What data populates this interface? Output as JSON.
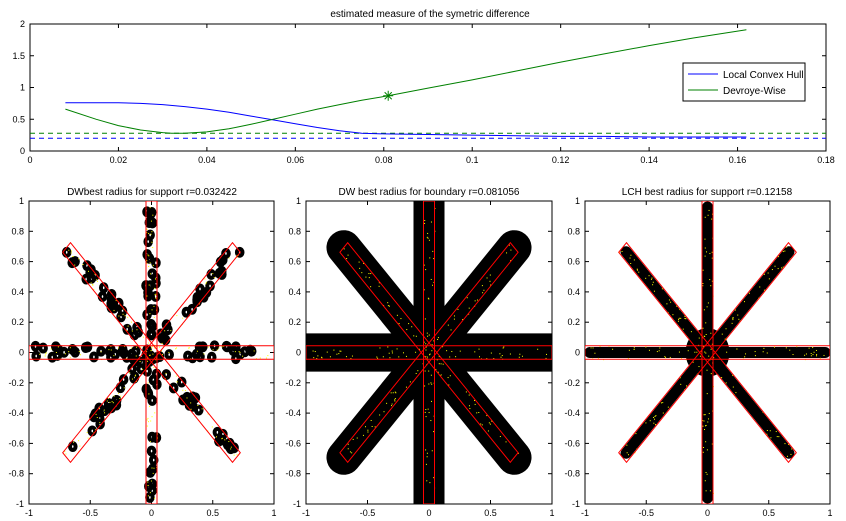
{
  "chart_data": [
    {
      "type": "line",
      "title": "estimated measure of the symetric difference",
      "xlim": [
        0,
        0.18
      ],
      "ylim": [
        0,
        2
      ],
      "xticks": [
        0,
        0.02,
        0.04,
        0.06,
        0.08,
        0.1,
        0.12,
        0.14,
        0.16,
        0.18
      ],
      "xtick_labels": [
        "0",
        "0.02",
        "0.04",
        "0.06",
        "0.08",
        "0.1",
        "0.12",
        "0.14",
        "0.16",
        "0.18"
      ],
      "yticks": [
        0,
        0.5,
        1,
        1.5,
        2
      ],
      "ytick_labels": [
        "0",
        "0.5",
        "1",
        "1.5",
        "2"
      ],
      "legend_position": "right",
      "series": [
        {
          "name": "Local Convex Hull",
          "color": "#0000ff",
          "x": [
            0.008,
            0.015,
            0.02,
            0.025,
            0.03,
            0.035,
            0.04,
            0.045,
            0.05,
            0.055,
            0.06,
            0.065,
            0.07,
            0.075,
            0.08,
            0.09,
            0.1,
            0.11,
            0.12,
            0.13,
            0.14,
            0.15,
            0.162
          ],
          "y": [
            0.76,
            0.76,
            0.76,
            0.75,
            0.73,
            0.7,
            0.66,
            0.61,
            0.55,
            0.49,
            0.43,
            0.37,
            0.32,
            0.28,
            0.27,
            0.26,
            0.25,
            0.24,
            0.23,
            0.23,
            0.22,
            0.22,
            0.22
          ]
        },
        {
          "name": "Devroye-Wise",
          "color": "#008000",
          "x": [
            0.008,
            0.015,
            0.02,
            0.025,
            0.03,
            0.032,
            0.035,
            0.04,
            0.045,
            0.05,
            0.055,
            0.06,
            0.065,
            0.07,
            0.075,
            0.081,
            0.09,
            0.1,
            0.11,
            0.12,
            0.13,
            0.14,
            0.15,
            0.162
          ],
          "y": [
            0.66,
            0.5,
            0.4,
            0.33,
            0.29,
            0.28,
            0.28,
            0.3,
            0.35,
            0.42,
            0.5,
            0.58,
            0.66,
            0.73,
            0.8,
            0.87,
            0.99,
            1.12,
            1.26,
            1.4,
            1.53,
            1.66,
            1.78,
            1.91
          ]
        }
      ],
      "reference_lines": [
        {
          "color": "#008000",
          "style": "dashed",
          "y": 0.28
        },
        {
          "color": "#0000ff",
          "style": "dashed",
          "y": 0.2
        }
      ],
      "markers": [
        {
          "color": "#008000",
          "shape": "star",
          "x": 0.081,
          "y": 0.87
        }
      ]
    },
    {
      "type": "scatter",
      "title": "DWbest radius for support r=0.032422",
      "xlim": [
        -1,
        1
      ],
      "ylim": [
        -1,
        1
      ],
      "xticks": [
        -1,
        -0.5,
        0,
        0.5,
        1
      ],
      "xtick_labels": [
        "-1",
        "-0.5",
        "0",
        "0.5",
        "1"
      ],
      "yticks": [
        -1,
        -0.8,
        -0.6,
        -0.4,
        -0.2,
        0,
        0.2,
        0.4,
        0.6,
        0.8,
        1
      ],
      "ytick_labels": [
        "-1",
        "-0.8",
        "-0.6",
        "-0.4",
        "-0.2",
        "0",
        "0.2",
        "0.4",
        "0.6",
        "0.8",
        "1"
      ],
      "radius": 0.032422
    },
    {
      "type": "scatter",
      "title": "DW best radius for boundary r=0.081056",
      "xlim": [
        -1,
        1
      ],
      "ylim": [
        -1,
        1
      ],
      "xticks": [
        -1,
        -0.5,
        0,
        0.5,
        1
      ],
      "xtick_labels": [
        "-1",
        "-0.5",
        "0",
        "0.5",
        "1"
      ],
      "yticks": [
        -1,
        -0.8,
        -0.6,
        -0.4,
        -0.2,
        0,
        0.2,
        0.4,
        0.6,
        0.8,
        1
      ],
      "ytick_labels": [
        "-1",
        "-0.8",
        "-0.6",
        "-0.4",
        "-0.2",
        "0",
        "0.2",
        "0.4",
        "0.6",
        "0.8",
        "1"
      ],
      "radius": 0.081056
    },
    {
      "type": "scatter",
      "title": "LCH best radius for support r=0.12158",
      "xlim": [
        -1,
        1
      ],
      "ylim": [
        -1,
        1
      ],
      "xticks": [
        -1,
        -0.5,
        0,
        0.5,
        1
      ],
      "xtick_labels": [
        "-1",
        "-0.5",
        "0",
        "0.5",
        "1"
      ],
      "yticks": [
        -1,
        -0.8,
        -0.6,
        -0.4,
        -0.2,
        0,
        0.2,
        0.4,
        0.6,
        0.8,
        1
      ],
      "ytick_labels": [
        "-1",
        "-0.8",
        "-0.6",
        "-0.4",
        "-0.2",
        "0",
        "0.2",
        "0.4",
        "0.6",
        "0.8",
        "1"
      ],
      "radius": 0.12158
    }
  ],
  "shape": {
    "arm_halfwidth": 0.045,
    "arm_length": 0.96,
    "diag_length": 0.98,
    "colors": {
      "outline": "#ff0000",
      "fill": "#000000",
      "points": "#ffff00"
    }
  }
}
